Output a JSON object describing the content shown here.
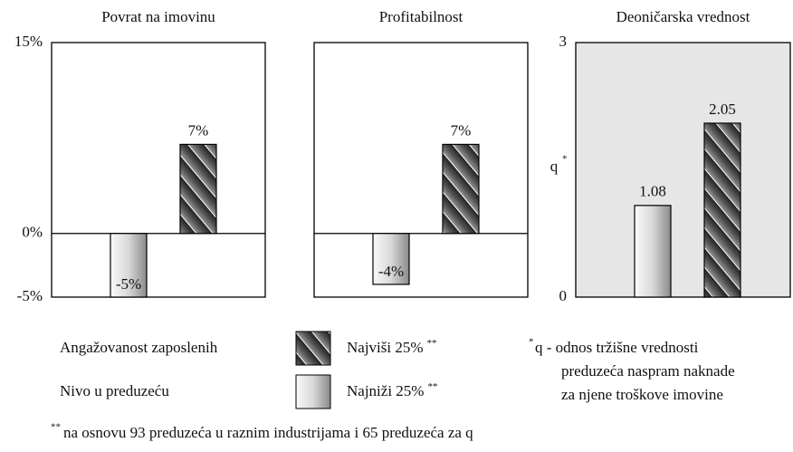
{
  "chart_data": [
    {
      "type": "bar",
      "title": "Povrat na imovinu",
      "categories": [
        null,
        null
      ],
      "values": [
        -5,
        7
      ],
      "value_labels": [
        "-5%",
        "7%"
      ],
      "styles": [
        "light",
        "hatched"
      ],
      "ylim": [
        -5,
        15
      ],
      "yticks": [
        {
          "value": 15,
          "label": "15%"
        },
        {
          "value": 0,
          "label": "0%"
        },
        {
          "value": -5,
          "label": "-5%"
        }
      ]
    },
    {
      "type": "bar",
      "title": "Profitabilnost",
      "categories": [
        null,
        null
      ],
      "values": [
        -4,
        7
      ],
      "value_labels": [
        "-4%",
        "7%"
      ],
      "styles": [
        "light",
        "hatched"
      ],
      "ylim": [
        -5,
        15
      ]
    },
    {
      "type": "bar",
      "title": "Deoničarska vrednost",
      "categories": [
        null,
        null
      ],
      "values": [
        1.08,
        2.05
      ],
      "styles": [
        "light",
        "hatched"
      ],
      "ylim": [
        0,
        3
      ],
      "yticks": [
        3,
        0
      ],
      "ylabel": "q",
      "ylabel_mark": "*",
      "background": "#e6e6e6"
    }
  ],
  "legend": {
    "group_labels": [
      "Angažovanost  zaposlenih",
      "Nivo u preduzeću"
    ],
    "entries": [
      {
        "label": "Najviši 25%",
        "mark": "**",
        "style": "hatched"
      },
      {
        "label": "Najniži 25%",
        "mark": "**",
        "style": "light"
      }
    ]
  },
  "note": {
    "mark": "*",
    "lines": [
      "q - odnos tržišne vrednosti",
      "preduzeća naspram naknade",
      "za njene troškove imovine"
    ]
  },
  "footnote": {
    "mark": "**",
    "text": "na osnovu 93 preduzeća u raznim industrijama i 65 preduzeća za q"
  }
}
